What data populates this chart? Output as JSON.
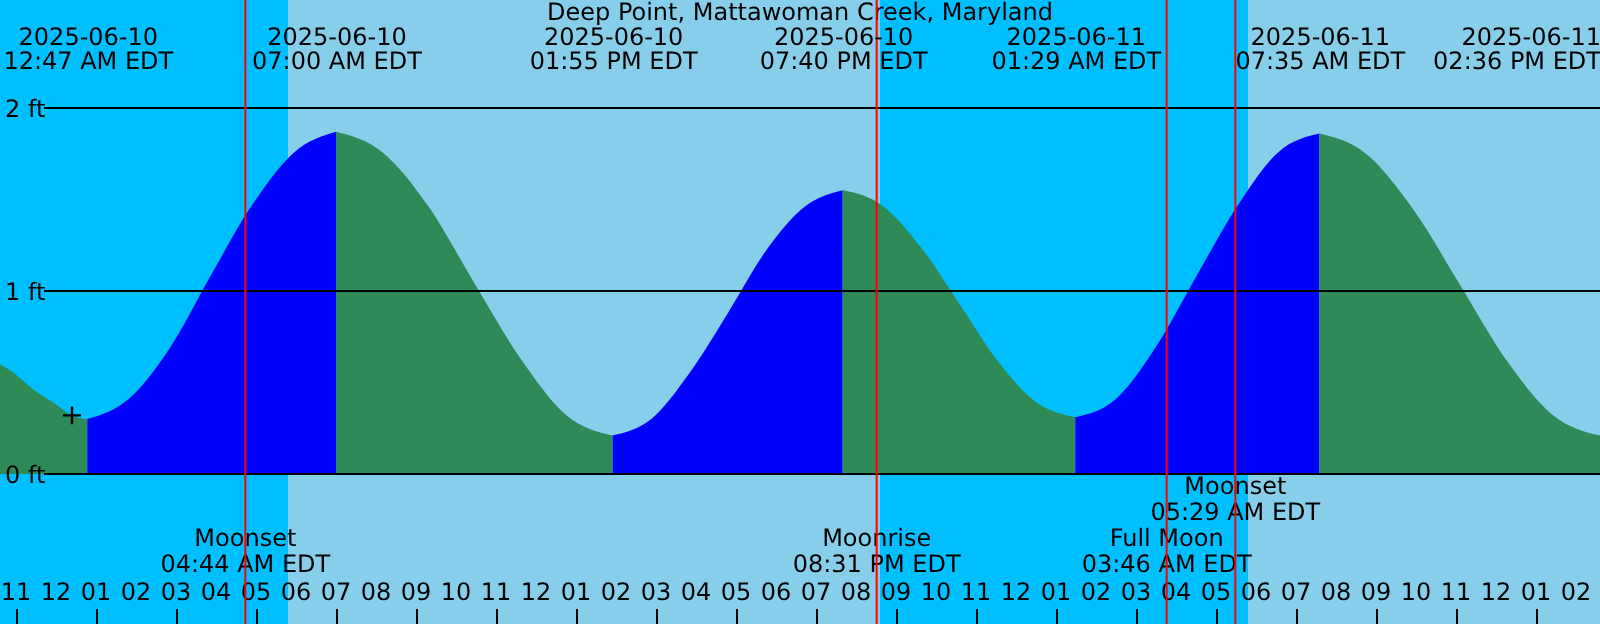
{
  "chart_data": {
    "type": "area",
    "title": "Deep Point, Mattawoman Creek, Maryland",
    "xlim": [
      "2025-06-09T22:36",
      "2025-06-11T14:36"
    ],
    "xticks": [
      {
        "value": "2025-06-09T23:00",
        "label": "11"
      },
      {
        "value": "2025-06-10T00:00",
        "label": "12"
      },
      {
        "value": "2025-06-10T01:00",
        "label": "01"
      },
      {
        "value": "2025-06-10T02:00",
        "label": "02"
      },
      {
        "value": "2025-06-10T03:00",
        "label": "03"
      },
      {
        "value": "2025-06-10T04:00",
        "label": "04"
      },
      {
        "value": "2025-06-10T05:00",
        "label": "05"
      },
      {
        "value": "2025-06-10T06:00",
        "label": "06"
      },
      {
        "value": "2025-06-10T07:00",
        "label": "07"
      },
      {
        "value": "2025-06-10T08:00",
        "label": "08"
      },
      {
        "value": "2025-06-10T09:00",
        "label": "09"
      },
      {
        "value": "2025-06-10T10:00",
        "label": "10"
      },
      {
        "value": "2025-06-10T11:00",
        "label": "11"
      },
      {
        "value": "2025-06-10T12:00",
        "label": "12"
      },
      {
        "value": "2025-06-10T13:00",
        "label": "01"
      },
      {
        "value": "2025-06-10T14:00",
        "label": "02"
      },
      {
        "value": "2025-06-10T15:00",
        "label": "03"
      },
      {
        "value": "2025-06-10T16:00",
        "label": "04"
      },
      {
        "value": "2025-06-10T17:00",
        "label": "05"
      },
      {
        "value": "2025-06-10T18:00",
        "label": "06"
      },
      {
        "value": "2025-06-10T19:00",
        "label": "07"
      },
      {
        "value": "2025-06-10T20:00",
        "label": "08"
      },
      {
        "value": "2025-06-10T21:00",
        "label": "09"
      },
      {
        "value": "2025-06-10T22:00",
        "label": "10"
      },
      {
        "value": "2025-06-10T23:00",
        "label": "11"
      },
      {
        "value": "2025-06-11T00:00",
        "label": "12"
      },
      {
        "value": "2025-06-11T01:00",
        "label": "01"
      },
      {
        "value": "2025-06-11T02:00",
        "label": "02"
      },
      {
        "value": "2025-06-11T03:00",
        "label": "03"
      },
      {
        "value": "2025-06-11T04:00",
        "label": "04"
      },
      {
        "value": "2025-06-11T05:00",
        "label": "05"
      },
      {
        "value": "2025-06-11T06:00",
        "label": "06"
      },
      {
        "value": "2025-06-11T07:00",
        "label": "07"
      },
      {
        "value": "2025-06-11T08:00",
        "label": "08"
      },
      {
        "value": "2025-06-11T09:00",
        "label": "09"
      },
      {
        "value": "2025-06-11T10:00",
        "label": "10"
      },
      {
        "value": "2025-06-11T11:00",
        "label": "11"
      },
      {
        "value": "2025-06-11T12:00",
        "label": "12"
      },
      {
        "value": "2025-06-11T13:00",
        "label": "01"
      },
      {
        "value": "2025-06-11T14:00",
        "label": "02"
      }
    ],
    "x2lim": [
      "2025-06-09T22:36",
      "2025-06-11T14:36"
    ],
    "x2ticks": [
      {
        "value": "2025-06-10T00:47",
        "label": "2025-06-10\n12:47 AM EDT"
      },
      {
        "value": "2025-06-10T07:00",
        "label": "2025-06-10\n07:00 AM EDT"
      },
      {
        "value": "2025-06-10T13:55",
        "label": "2025-06-10\n01:55 PM EDT"
      },
      {
        "value": "2025-06-10T19:40",
        "label": "2025-06-10\n07:40 PM EDT"
      },
      {
        "value": "2025-06-11T01:29",
        "label": "2025-06-11\n01:29 AM EDT"
      },
      {
        "value": "2025-06-11T07:35",
        "label": "2025-06-11\n07:35 AM EDT"
      },
      {
        "value": "2025-06-11T14:36",
        "label": "2025-06-11\n02:36 PM EDT"
      }
    ],
    "ylim": [
      -0.82,
      2.59
    ],
    "yticks": [
      {
        "value": 0,
        "label": "0 ft"
      },
      {
        "value": 1,
        "label": "1 ft"
      },
      {
        "value": 2,
        "label": "2 ft"
      }
    ],
    "grid": "y",
    "series": [
      {
        "color": "#2e8b57",
        "x": [
          "2025-06-09T22:36",
          "2025-06-09T22:54",
          "2025-06-09T23:30",
          "2025-06-10T00:00",
          "2025-06-10T00:24",
          "2025-06-10T00:47"
        ],
        "values": [
          0.6,
          0.56,
          0.45,
          0.38,
          0.32,
          0.3
        ]
      },
      {
        "color": "#0000ff",
        "x": [
          "2025-06-10T00:47",
          "2025-06-10T01:49",
          "2025-06-10T02:51",
          "2025-06-10T03:53",
          "2025-06-10T04:56",
          "2025-06-10T05:58",
          "2025-06-10T07:00"
        ],
        "values": [
          0.3,
          0.41,
          0.69,
          1.09,
          1.48,
          1.76,
          1.87
        ]
      },
      {
        "color": "#2e8b57",
        "x": [
          "2025-06-10T07:00",
          "2025-06-10T08:09",
          "2025-06-10T09:19",
          "2025-06-10T10:28",
          "2025-06-10T11:37",
          "2025-06-10T12:46",
          "2025-06-10T13:55"
        ],
        "values": [
          1.87,
          1.76,
          1.46,
          1.04,
          0.63,
          0.32,
          0.21
        ]
      },
      {
        "color": "#0000ff",
        "x": [
          "2025-06-10T13:55",
          "2025-06-10T14:53",
          "2025-06-10T15:50",
          "2025-06-10T16:48",
          "2025-06-10T17:45",
          "2025-06-10T18:43",
          "2025-06-10T19:40"
        ],
        "values": [
          0.21,
          0.3,
          0.55,
          0.88,
          1.22,
          1.46,
          1.55
        ]
      },
      {
        "color": "#2e8b57",
        "x": [
          "2025-06-10T19:40",
          "2025-06-10T20:38",
          "2025-06-10T21:37",
          "2025-06-10T22:35",
          "2025-06-10T23:32",
          "2025-06-11T00:31",
          "2025-06-11T01:29"
        ],
        "values": [
          1.55,
          1.47,
          1.24,
          0.93,
          0.62,
          0.39,
          0.31
        ]
      },
      {
        "color": "#0000ff",
        "x": [
          "2025-06-11T01:29",
          "2025-06-11T02:30",
          "2025-06-11T03:31",
          "2025-06-11T04:32",
          "2025-06-11T05:33",
          "2025-06-11T06:34",
          "2025-06-11T07:35"
        ],
        "values": [
          0.31,
          0.41,
          0.7,
          1.09,
          1.47,
          1.76,
          1.86
        ]
      },
      {
        "color": "#2e8b57",
        "x": [
          "2025-06-11T07:35",
          "2025-06-11T08:45",
          "2025-06-11T09:55",
          "2025-06-11T11:05",
          "2025-06-11T12:16",
          "2025-06-11T13:26",
          "2025-06-11T14:36"
        ],
        "values": [
          1.86,
          1.75,
          1.45,
          1.04,
          0.62,
          0.32,
          0.21
        ]
      },
      {
        "type": "scatter",
        "marker": "cross",
        "color": "#000000",
        "x": [
          "2025-06-10T00:24"
        ],
        "values": [
          0.32
        ]
      }
    ],
    "bands": [
      {
        "axis": "x",
        "from": "2025-06-09T22:36",
        "to": "2025-06-10T05:48",
        "color": "#00bfff"
      },
      {
        "axis": "x",
        "from": "2025-06-10T05:48",
        "to": "2025-06-10T20:36",
        "color": "#87ceeb"
      },
      {
        "axis": "x",
        "from": "2025-06-10T20:36",
        "to": "2025-06-11T05:48",
        "color": "#00bfff"
      },
      {
        "axis": "x",
        "from": "2025-06-11T05:48",
        "to": "2025-06-11T14:36",
        "color": "#87ceeb"
      }
    ],
    "ref_lines": [
      {
        "axis": "x",
        "value": "2025-06-10T04:44",
        "label": "Moonset\n04:44 AM EDT",
        "color": "#ff0000"
      },
      {
        "axis": "x",
        "value": "2025-06-10T20:31",
        "label": "Moonrise\n08:31 PM EDT",
        "color": "#ff0000"
      },
      {
        "axis": "x",
        "value": "2025-06-11T03:46",
        "label": "Full Moon\n03:46 AM EDT",
        "color": "#ff0000"
      },
      {
        "axis": "x",
        "value": "2025-06-11T05:29",
        "label": "Moonset\n05:29 AM EDT",
        "color": "#ff0000"
      }
    ]
  }
}
